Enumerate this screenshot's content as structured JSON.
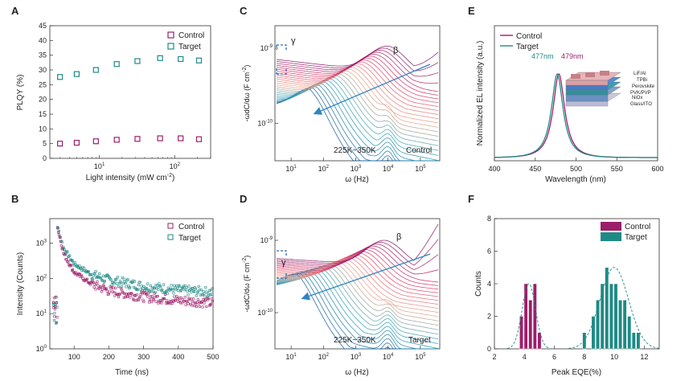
{
  "panels": {
    "A": "A",
    "B": "B",
    "C": "C",
    "D": "D",
    "E": "E",
    "F": "F"
  },
  "colors": {
    "control": "#9c1f6b",
    "target": "#1e8a86",
    "arrow": "#2e86c1",
    "cold": "#2b7fb5",
    "hot": "#e02040"
  },
  "chart_data": [
    {
      "panel": "A",
      "type": "scatter",
      "xlabel": "Light intensity (mW cm",
      "xlabel_sup": "-2",
      "xlabel_end": ")",
      "ylabel": "PLQY (%)",
      "xscale": "log",
      "xlim": [
        2.2,
        300
      ],
      "ylim": [
        0,
        45
      ],
      "yticks": [
        "0",
        "5",
        "10",
        "15",
        "20",
        "25",
        "30",
        "35",
        "40",
        "45"
      ],
      "xticks": [
        "10",
        "10"
      ],
      "xticks_sup": [
        "1",
        "2"
      ],
      "legend": [
        "Control",
        "Target"
      ],
      "series": [
        {
          "name": "Control",
          "x": [
            3,
            5,
            9,
            17,
            32,
            64,
            120,
            210
          ],
          "y": [
            5.0,
            5.3,
            5.8,
            6.3,
            6.6,
            6.8,
            6.8,
            6.5
          ]
        },
        {
          "name": "Target",
          "x": [
            3,
            5,
            9,
            17,
            32,
            64,
            120,
            210
          ],
          "y": [
            27.6,
            28.6,
            30.0,
            32.0,
            33.0,
            34.0,
            33.7,
            33.2
          ]
        }
      ]
    },
    {
      "panel": "B",
      "type": "scatter",
      "xlabel": "Time (ns)",
      "ylabel": "Intensity (Counts)",
      "yscale": "log",
      "xlim": [
        30,
        500
      ],
      "ylim": [
        1,
        5000
      ],
      "xticks": [
        "100",
        "200",
        "300",
        "400",
        "500"
      ],
      "yticks": [
        "10",
        "10",
        "10",
        "10"
      ],
      "yticks_sup": [
        "0",
        "1",
        "2",
        "3"
      ],
      "legend": [
        "Control",
        "Target"
      ],
      "series": [
        {
          "name": "Control",
          "peak_x": 52,
          "peak_y": 2700,
          "x": [
            52,
            70,
            100,
            150,
            200,
            300,
            400,
            500
          ],
          "y": [
            2700,
            500,
            150,
            70,
            45,
            30,
            24,
            20
          ]
        },
        {
          "name": "Target",
          "peak_x": 52,
          "peak_y": 3000,
          "x": [
            52,
            70,
            100,
            150,
            200,
            300,
            400,
            500
          ],
          "y": [
            3000,
            700,
            260,
            130,
            90,
            60,
            47,
            40
          ]
        }
      ]
    },
    {
      "panel": "C",
      "type": "line",
      "xlabel": "ω (Hz)",
      "ylabel": "-ωdC/dω (F cm",
      "ylabel_sup": "-2",
      "ylabel_end": ")",
      "xscale": "log",
      "yscale": "log",
      "xticks": [
        "10",
        "10",
        "10",
        "10",
        "10"
      ],
      "xticks_sup": [
        "1",
        "2",
        "3",
        "4",
        "5"
      ],
      "yticks": [
        "10",
        "10"
      ],
      "yticks_sup": [
        "-9",
        "-10"
      ],
      "annotation": "225K~350K",
      "label": "Control",
      "peak_labels": [
        "γ",
        "β"
      ],
      "temperature_range_K": [
        225,
        350
      ],
      "curves": 26
    },
    {
      "panel": "D",
      "type": "line",
      "xlabel": "ω (Hz)",
      "ylabel": "-ωdC/dω (F cm",
      "ylabel_sup": "-2",
      "ylabel_end": ")",
      "xscale": "log",
      "yscale": "log",
      "xticks": [
        "10",
        "10",
        "10",
        "10",
        "10"
      ],
      "xticks_sup": [
        "1",
        "2",
        "3",
        "4",
        "5"
      ],
      "yticks": [
        "10",
        "10"
      ],
      "yticks_sup": [
        "-9",
        "-10"
      ],
      "annotation": "225K~350K",
      "label": "Target",
      "peak_labels": [
        "γ",
        "β"
      ],
      "temperature_range_K": [
        225,
        350
      ],
      "curves": 26
    },
    {
      "panel": "E",
      "type": "line",
      "xlabel": "Wavelength  (nm)",
      "ylabel": "Normalized EL intensity (a.u.)",
      "xlim": [
        400,
        600
      ],
      "xticks": [
        "400",
        "450",
        "500",
        "550",
        "600"
      ],
      "legend": [
        "Control",
        "Target"
      ],
      "peak_annotations": [
        "477nm",
        "479nm"
      ],
      "series": [
        {
          "name": "Control",
          "peak_nm": 479,
          "fwhm_nm": 20
        },
        {
          "name": "Target",
          "peak_nm": 477,
          "fwhm_nm": 20
        }
      ],
      "device_layers": [
        "LiF/Al",
        "TPBi",
        "Perovskite",
        "PVK/PVP",
        "NiOx",
        "Glass/ITO"
      ]
    },
    {
      "panel": "F",
      "type": "bar",
      "xlabel": "Peak EQE(%)",
      "ylabel": "Counts",
      "xlim": [
        2,
        13
      ],
      "ylim": [
        0,
        8
      ],
      "xticks": [
        "2",
        "4",
        "6",
        "8",
        "10",
        "12"
      ],
      "yticks": [
        "0",
        "2",
        "4",
        "6",
        "8"
      ],
      "legend": [
        "Control",
        "Target"
      ],
      "series": [
        {
          "name": "Control",
          "x": [
            3.8,
            4.1,
            4.4,
            4.7,
            5.0
          ],
          "values": [
            2,
            4,
            3,
            4,
            1
          ]
        },
        {
          "name": "Target",
          "x": [
            8.0,
            8.6,
            8.9,
            9.2,
            9.5,
            9.8,
            10.1,
            10.4,
            10.7,
            11.0,
            11.3,
            11.6
          ],
          "values": [
            1,
            2,
            3,
            4,
            5,
            4,
            4,
            3,
            3,
            2,
            1,
            1
          ]
        }
      ],
      "fits": [
        {
          "name": "Control",
          "mean": 4.3,
          "sigma": 0.45,
          "peak": 4.0
        },
        {
          "name": "Target",
          "mean": 10.0,
          "sigma": 0.95,
          "peak": 5.0
        }
      ]
    }
  ]
}
